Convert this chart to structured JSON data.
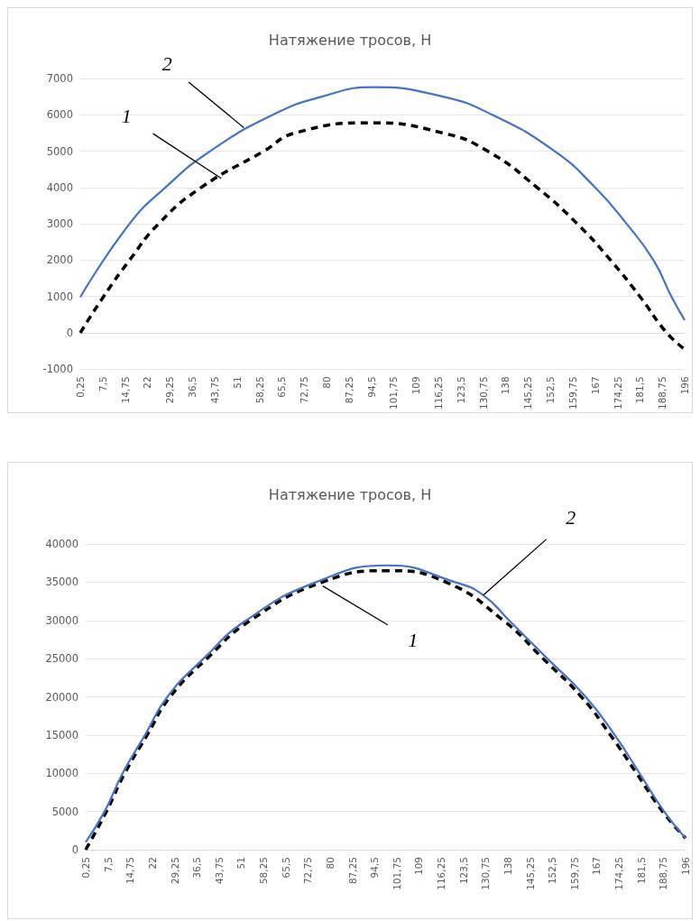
{
  "chart_data": [
    {
      "type": "line",
      "title": "Натяжение тросов, Н",
      "grid": "y",
      "marker": "none",
      "xlim": [
        0.25,
        196
      ],
      "ylim": [
        -1000,
        7000
      ],
      "yticks": [
        -1000,
        0,
        1000,
        2000,
        3000,
        4000,
        5000,
        6000,
        7000
      ],
      "xticks": [
        {
          "value": 0.25,
          "label": "0,25"
        },
        {
          "value": 7.5,
          "label": "7,5"
        },
        {
          "value": 14.75,
          "label": "14,75"
        },
        22,
        {
          "value": 29.25,
          "label": "29,25"
        },
        {
          "value": 36.5,
          "label": "36,5"
        },
        {
          "value": 43.75,
          "label": "43,75"
        },
        51,
        {
          "value": 58.25,
          "label": "58,25"
        },
        {
          "value": 65.5,
          "label": "65,5"
        },
        {
          "value": 72.75,
          "label": "72,75"
        },
        80,
        {
          "value": 87.25,
          "label": "87,25"
        },
        {
          "value": 94.5,
          "label": "94,5"
        },
        {
          "value": 101.75,
          "label": "101,75"
        },
        109,
        {
          "value": 116.25,
          "label": "116,25"
        },
        {
          "value": 123.5,
          "label": "123,5"
        },
        {
          "value": 130.75,
          "label": "130,75"
        },
        138,
        {
          "value": 145.25,
          "label": "145,25"
        },
        {
          "value": 152.5,
          "label": "152,5"
        },
        {
          "value": 159.75,
          "label": "159,75"
        },
        167,
        {
          "value": 174.25,
          "label": "174,25"
        },
        {
          "value": 181.5,
          "label": "181,5"
        },
        {
          "value": 188.75,
          "label": "188,75"
        },
        196
      ],
      "series": [
        {
          "color": "#000000",
          "line_style": "dashed",
          "x": [
            0.25,
            7.8,
            16.2,
            25.6,
            39.4,
            59.7,
            69.8,
            94.5,
            117.7,
            132.2,
            148.2,
            161.2,
            172,
            181.5,
            190.2,
            196
          ],
          "values": [
            0,
            1000,
            2000,
            3000,
            4000,
            5000,
            5500,
            5780,
            5500,
            5000,
            4000,
            3000,
            2000,
            1000,
            0,
            -450
          ]
        },
        {
          "color": "#4472c4",
          "line_style": "solid",
          "x": [
            0.25,
            16.2,
            27.8,
            42.3,
            62.6,
            78.5,
            95.2,
            117.7,
            133.7,
            153.9,
            167,
            177.2,
            185.9,
            191.7,
            196
          ],
          "values": [
            980,
            3000,
            4000,
            5000,
            6000,
            6500,
            6760,
            6500,
            6000,
            5000,
            4000,
            3000,
            2000,
            1000,
            350
          ]
        }
      ],
      "annotations": [
        {
          "text": "2",
          "x": 53.2,
          "y": 5650
        },
        {
          "text": "1",
          "x": 45.9,
          "y": 4250
        }
      ]
    },
    {
      "type": "line",
      "title": "Натяжение тросов, Н",
      "grid": "y",
      "marker": "none",
      "xlim": [
        0.25,
        196
      ],
      "ylim": [
        0,
        40000
      ],
      "yticks": [
        0,
        5000,
        10000,
        15000,
        20000,
        25000,
        30000,
        35000,
        40000
      ],
      "xticks": [
        {
          "value": 0.25,
          "label": "0,25"
        },
        {
          "value": 7.5,
          "label": "7,5"
        },
        {
          "value": 14.75,
          "label": "14,75"
        },
        22,
        {
          "value": 29.25,
          "label": "29,25"
        },
        {
          "value": 36.5,
          "label": "36,5"
        },
        {
          "value": 43.75,
          "label": "43,75"
        },
        51,
        {
          "value": 58.25,
          "label": "58,25"
        },
        {
          "value": 65.5,
          "label": "65,5"
        },
        {
          "value": 72.75,
          "label": "72,75"
        },
        80,
        {
          "value": 87.25,
          "label": "87,25"
        },
        {
          "value": 94.5,
          "label": "94,5"
        },
        {
          "value": 101.75,
          "label": "101,75"
        },
        109,
        {
          "value": 116.25,
          "label": "116,25"
        },
        {
          "value": 123.5,
          "label": "123,5"
        },
        {
          "value": 130.75,
          "label": "130,75"
        },
        138,
        {
          "value": 145.25,
          "label": "145,25"
        },
        {
          "value": 152.5,
          "label": "152,5"
        },
        {
          "value": 159.75,
          "label": "159,75"
        },
        167,
        {
          "value": 174.25,
          "label": "174,25"
        },
        {
          "value": 181.5,
          "label": "181,5"
        },
        {
          "value": 188.75,
          "label": "188,75"
        },
        196
      ],
      "series": [
        {
          "color": "#000000",
          "line_style": "dashed",
          "x": [
            0.25,
            7,
            13,
            20.3,
            27.8,
            39.8,
            54,
            77.5,
            98.8,
            117.8,
            136.5,
            149.5,
            162,
            171.5,
            180,
            188.5,
            196
          ],
          "values": [
            0,
            5000,
            10000,
            15000,
            20000,
            25000,
            30000,
            35000,
            36500,
            35000,
            30000,
            25000,
            20000,
            15000,
            10000,
            5000,
            1500
          ]
        },
        {
          "color": "#4472c4",
          "line_style": "solid",
          "x": [
            0.25,
            6.4,
            12.3,
            19.6,
            26.9,
            38.7,
            52.6,
            75.4,
            98.8,
            120.8,
            130,
            138.4,
            150.9,
            163.4,
            172.9,
            181,
            189,
            196
          ],
          "values": [
            1000,
            5000,
            10000,
            15000,
            20000,
            25000,
            30000,
            35000,
            37200,
            35000,
            33300,
            30000,
            25000,
            20000,
            15000,
            10000,
            5000,
            1500
          ]
        }
      ],
      "annotations": [
        {
          "text": "2",
          "x": 130,
          "y": 33300
        },
        {
          "text": "1",
          "x": 77.6,
          "y": 34500
        }
      ]
    }
  ]
}
